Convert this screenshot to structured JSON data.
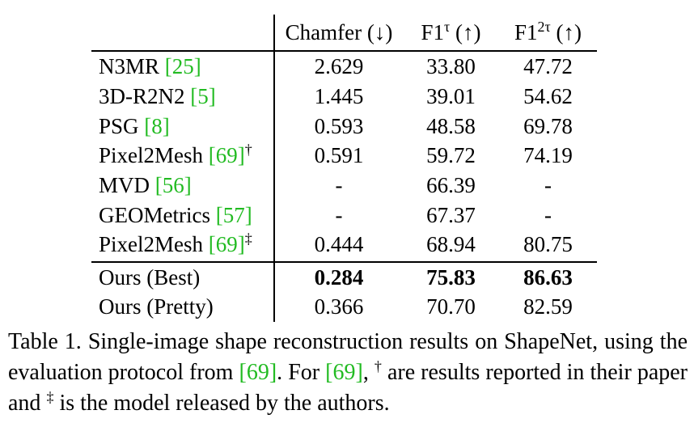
{
  "table": {
    "columns": [
      "Chamfer (↓)",
      "F1",
      "F1"
    ],
    "column_sup": [
      "",
      "τ",
      "2τ"
    ],
    "column_suffix": [
      "",
      " (↑)",
      " (↑)"
    ],
    "rows": [
      {
        "name": "N3MR",
        "cite": "25",
        "mark": "",
        "values": [
          "2.629",
          "33.80",
          "47.72"
        ]
      },
      {
        "name": "3D-R2N2",
        "cite": "5",
        "mark": "",
        "values": [
          "1.445",
          "39.01",
          "54.62"
        ]
      },
      {
        "name": "PSG",
        "cite": "8",
        "mark": "",
        "values": [
          "0.593",
          "48.58",
          "69.78"
        ]
      },
      {
        "name": "Pixel2Mesh",
        "cite": "69",
        "mark": "†",
        "values": [
          "0.591",
          "59.72",
          "74.19"
        ]
      },
      {
        "name": "MVD",
        "cite": "56",
        "mark": "",
        "values": [
          "-",
          "66.39",
          "-"
        ]
      },
      {
        "name": "GEOMetrics",
        "cite": "57",
        "mark": "",
        "values": [
          "-",
          "67.37",
          "-"
        ]
      },
      {
        "name": "Pixel2Mesh",
        "cite": "69",
        "mark": "‡",
        "values": [
          "0.444",
          "68.94",
          "80.75"
        ]
      }
    ],
    "ours": [
      {
        "name": "Ours (Best)",
        "values": [
          "0.284",
          "75.83",
          "86.63"
        ]
      },
      {
        "name": "Ours (Pretty)",
        "values": [
          "0.366",
          "70.70",
          "82.59"
        ]
      }
    ]
  },
  "caption": {
    "label": "Table 1.",
    "text_a": "Single-image shape reconstruction results on ShapeNet, using the evaluation protocol from ",
    "cite_a": "69",
    "text_b": ". For ",
    "cite_b": "69",
    "text_c": ", ",
    "dagger": "†",
    "text_d": " are results reported in their paper and ",
    "ddagger": "‡",
    "text_e": " is the model released by the authors."
  },
  "colors": {
    "citation": "#22bb22",
    "text": "#000000"
  }
}
